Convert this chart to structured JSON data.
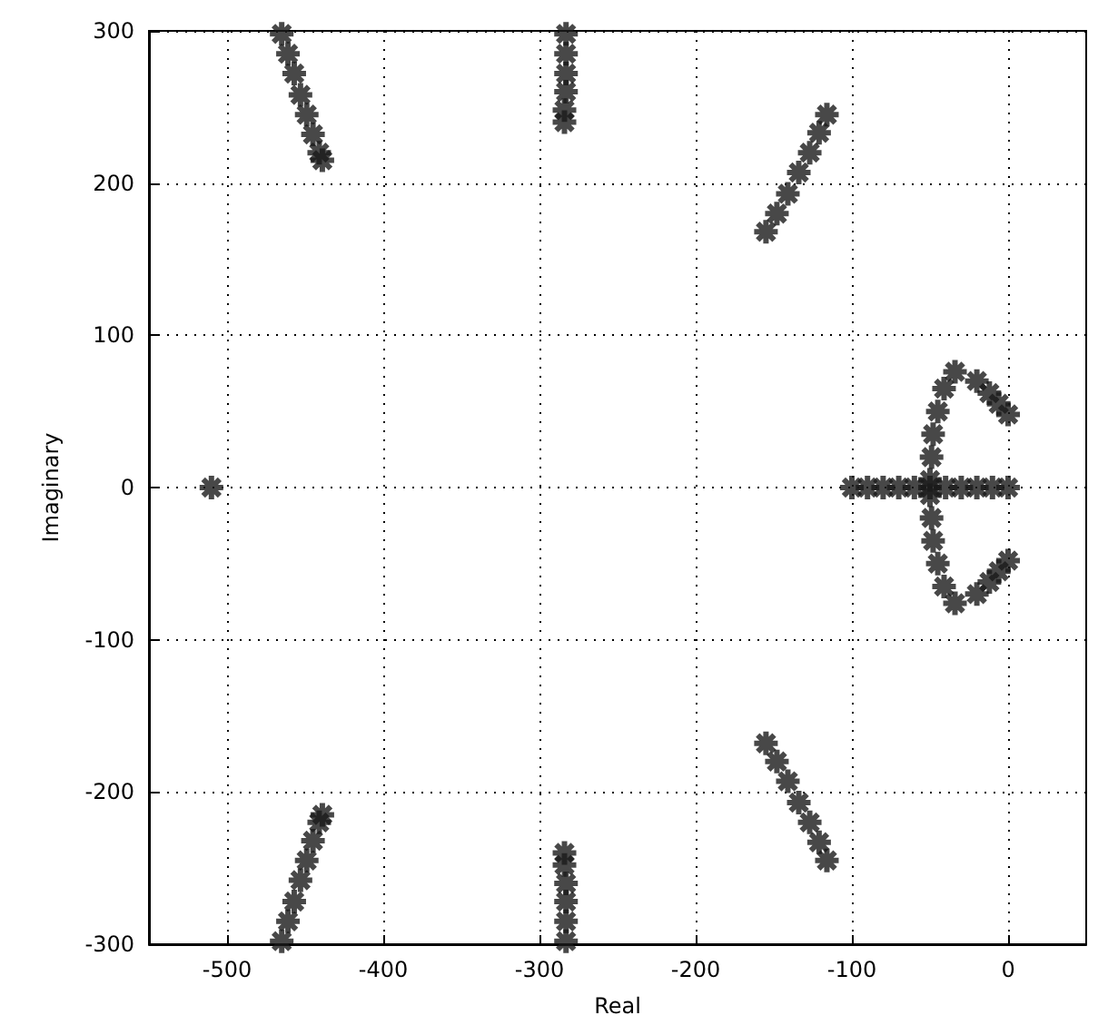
{
  "chart_data": {
    "type": "scatter",
    "xlabel": "Real",
    "ylabel": "Imaginary",
    "xlim": [
      -550,
      50
    ],
    "xticks": [
      -500,
      -400,
      -300,
      -200,
      -100,
      0
    ],
    "ylim": [
      -300,
      300
    ],
    "yticks": [
      -300,
      -200,
      -100,
      0,
      100,
      200,
      300
    ],
    "grid": true,
    "marker": "cross",
    "series": [
      {
        "color": "#1a1a1a",
        "x": [
          -465,
          -461,
          -457,
          -453,
          -449,
          -445,
          -441,
          -439,
          -465,
          -461,
          -457,
          -453,
          -449,
          -445,
          -441,
          -439,
          -283,
          -283,
          -283,
          -283,
          -284,
          -284,
          -283,
          -283,
          -283,
          -283,
          -284,
          -284,
          -155,
          -148,
          -141,
          -134,
          -127,
          -121,
          -116,
          -155,
          -148,
          -141,
          -134,
          -127,
          -121,
          -116,
          -510,
          -100,
          -90,
          -80,
          -70,
          -60,
          -50,
          -40,
          -30,
          -20,
          -10,
          0,
          -34,
          -41,
          -45,
          -48,
          -49,
          -50,
          -50,
          -49,
          -48,
          -45,
          -41,
          -34,
          -20,
          -12,
          -6,
          0,
          -20,
          -12,
          -6,
          0
        ],
        "values": [
          298,
          285,
          272,
          258,
          245,
          232,
          220,
          215,
          -298,
          -285,
          -272,
          -258,
          -245,
          -232,
          -220,
          -215,
          298,
          285,
          272,
          260,
          248,
          240,
          -298,
          -285,
          -272,
          -260,
          -248,
          -240,
          168,
          180,
          193,
          207,
          220,
          233,
          245,
          -168,
          -180,
          -193,
          -207,
          -220,
          -233,
          -245,
          0,
          0,
          0,
          0,
          0,
          0,
          0,
          0,
          0,
          0,
          0,
          0,
          76,
          65,
          50,
          35,
          20,
          5,
          -5,
          -20,
          -35,
          -50,
          -65,
          -76,
          70,
          62,
          55,
          48,
          -70,
          -62,
          -55,
          -48
        ]
      }
    ]
  }
}
